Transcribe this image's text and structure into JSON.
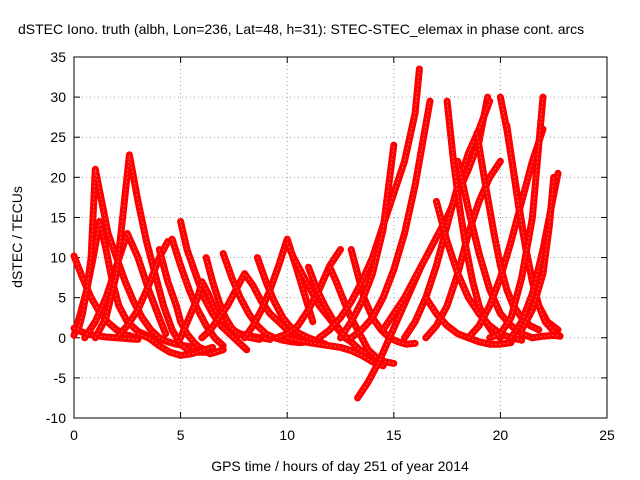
{
  "chart_data": {
    "type": "scatter",
    "title": "dSTEC Iono. truth (albh, Lon=236, Lat=48, h=31): STEC-STEC_elemax in phase cont. arcs",
    "xlabel": "GPS time / hours of day 251 of year 2014",
    "ylabel": "dSTEC  / TECUs",
    "xlim": [
      0,
      25
    ],
    "ylim": [
      -10,
      35
    ],
    "xticks": [
      "0",
      "5",
      "10",
      "15",
      "20",
      "25"
    ],
    "yticks": [
      "-10",
      "-5",
      "0",
      "5",
      "10",
      "15",
      "20",
      "25",
      "30",
      "35"
    ],
    "grid": true,
    "legend": "none",
    "color": "#ff0000",
    "series": [
      {
        "x": [
          0.0,
          0.4,
          0.8,
          1.2,
          1.6,
          2.0,
          2.4,
          2.7
        ],
        "y": [
          10.2,
          7.5,
          5.0,
          3.2,
          1.9,
          1.0,
          0.4,
          0.2
        ]
      },
      {
        "x": [
          0.0,
          0.3,
          0.6,
          0.9,
          1.2,
          1.5,
          1.8,
          2.1,
          2.5,
          3.0,
          3.5,
          4.2
        ],
        "y": [
          0.3,
          3.0,
          6.0,
          10.0,
          14.5,
          11.0,
          7.0,
          4.0,
          2.0,
          0.8,
          0.2,
          -0.3
        ]
      },
      {
        "x": [
          0.0,
          0.3,
          0.6,
          1.0,
          1.5,
          2.0,
          2.5,
          3.0
        ],
        "y": [
          1.2,
          0.8,
          0.5,
          0.3,
          0.1,
          0.0,
          -0.1,
          -0.2
        ]
      },
      {
        "x": [
          0.2,
          0.4,
          0.6,
          0.8,
          1.0,
          1.3,
          1.6,
          2.0,
          2.4,
          2.8,
          3.2,
          3.6,
          4.0,
          4.4,
          4.8,
          5.2,
          5.6,
          6.0
        ],
        "y": [
          1.0,
          3.0,
          6.0,
          10.0,
          21.0,
          17.0,
          13.0,
          10.0,
          7.0,
          4.5,
          2.5,
          1.0,
          0.0,
          -0.5,
          -0.8,
          -1.0,
          -1.2,
          -1.3
        ]
      },
      {
        "x": [
          0.5,
          1.0,
          1.5,
          2.0,
          2.5,
          3.0,
          3.5,
          4.0,
          4.3
        ],
        "y": [
          0.0,
          2.0,
          5.0,
          9.0,
          13.0,
          10.0,
          6.0,
          2.5,
          0.5
        ]
      },
      {
        "x": [
          1.0,
          1.5,
          2.0,
          2.6,
          3.0,
          3.4,
          3.8,
          4.2,
          4.6,
          5.0,
          5.4,
          5.8,
          6.2
        ],
        "y": [
          0.0,
          2.5,
          8.0,
          22.8,
          17.0,
          12.0,
          8.0,
          4.0,
          1.0,
          -0.8,
          -1.6,
          -1.8,
          -1.8
        ]
      },
      {
        "x": [
          2.0,
          2.5,
          3.0,
          3.5,
          4.0,
          4.4
        ],
        "y": [
          0.0,
          1.5,
          3.5,
          6.5,
          10.0,
          12.0
        ]
      },
      {
        "x": [
          4.0,
          4.4,
          4.8,
          5.0,
          5.3,
          5.6,
          6.0,
          6.4,
          7.0
        ],
        "y": [
          11.0,
          7.0,
          4.0,
          2.0,
          0.5,
          -0.5,
          -1.5,
          -2.0,
          -1.5
        ]
      },
      {
        "x": [
          3.0,
          3.5,
          4.0,
          4.5,
          5.0,
          5.5,
          6.0,
          6.5
        ],
        "y": [
          0.5,
          0.0,
          -1.0,
          -1.8,
          -2.2,
          -2.0,
          -1.6,
          -1.2
        ]
      },
      {
        "x": [
          4.6,
          5.0,
          5.4,
          5.8,
          6.2,
          6.6,
          7.0
        ],
        "y": [
          12.3,
          9.0,
          6.0,
          3.5,
          1.5,
          0.0,
          -1.0
        ]
      },
      {
        "x": [
          5.0,
          5.3,
          5.7,
          6.1,
          6.5,
          6.9,
          7.3,
          7.7,
          8.1
        ],
        "y": [
          14.5,
          11.0,
          8.0,
          5.0,
          3.0,
          1.5,
          0.5,
          -0.5,
          -1.5
        ]
      },
      {
        "x": [
          5.0,
          5.4,
          5.8,
          6.0,
          6.3,
          6.6,
          7.0,
          7.4,
          7.8,
          8.3,
          8.8,
          9.2
        ],
        "y": [
          0.0,
          2.5,
          5.0,
          7.0,
          5.5,
          3.5,
          2.0,
          1.0,
          0.5,
          0.2,
          0.0,
          -0.2
        ]
      },
      {
        "x": [
          6.2,
          6.5,
          6.8,
          7.1,
          7.4,
          7.7,
          8.0,
          8.3,
          8.7
        ],
        "y": [
          10.0,
          7.0,
          4.5,
          2.5,
          1.2,
          0.5,
          0.2,
          0.0,
          -0.2
        ]
      },
      {
        "x": [
          6.0,
          6.4,
          6.8,
          7.2,
          7.6,
          8.0,
          8.4,
          8.8,
          9.2,
          9.6,
          10.0,
          10.5,
          11.0
        ],
        "y": [
          0.0,
          1.0,
          2.5,
          4.0,
          6.0,
          8.0,
          6.5,
          4.5,
          3.0,
          2.0,
          1.0,
          0.2,
          -0.5
        ]
      },
      {
        "x": [
          7.0,
          7.4,
          7.8,
          8.2,
          8.6,
          9.0,
          9.4,
          9.8,
          10.2,
          10.6,
          11.0
        ],
        "y": [
          10.5,
          7.5,
          5.0,
          3.0,
          1.5,
          0.5,
          0.0,
          -0.3,
          -0.5,
          -0.6,
          -0.5
        ]
      },
      {
        "x": [
          8.0,
          8.4,
          8.8,
          9.2,
          9.6,
          10.0,
          10.4,
          10.8,
          11.2
        ],
        "y": [
          0.0,
          1.5,
          3.5,
          6.0,
          9.0,
          12.3,
          9.0,
          5.5,
          2.0
        ]
      },
      {
        "x": [
          8.6,
          9.0,
          9.4,
          9.8,
          10.2,
          10.6,
          11.0,
          11.4,
          11.8
        ],
        "y": [
          10.0,
          7.0,
          4.5,
          2.5,
          1.2,
          0.5,
          0.0,
          -0.4,
          -0.8
        ]
      },
      {
        "x": [
          10.0,
          10.3,
          10.6,
          10.9,
          11.2,
          11.5,
          11.8,
          12.1,
          12.4,
          12.7,
          13.0
        ],
        "y": [
          11.8,
          10.0,
          8.5,
          7.0,
          5.5,
          4.0,
          3.0,
          2.0,
          1.0,
          0.0,
          -0.5
        ]
      },
      {
        "x": [
          9.5,
          10.0,
          10.5,
          11.0,
          11.5,
          12.0,
          12.5
        ],
        "y": [
          0.0,
          0.5,
          1.5,
          3.5,
          6.0,
          9.0,
          11.0
        ]
      },
      {
        "x": [
          11.0,
          11.4,
          11.8,
          12.2,
          12.6,
          13.0,
          13.4,
          13.8,
          14.2
        ],
        "y": [
          8.8,
          6.0,
          3.8,
          2.0,
          0.5,
          -0.5,
          -1.5,
          -2.0,
          -2.5
        ]
      },
      {
        "x": [
          10.0,
          10.5,
          11.0,
          11.5,
          12.0,
          12.5,
          13.0,
          13.5,
          14.0,
          14.5
        ],
        "y": [
          0.0,
          -0.3,
          -0.6,
          -0.8,
          -1.0,
          -1.2,
          -1.6,
          -2.2,
          -3.0,
          -3.5
        ]
      },
      {
        "x": [
          12.0,
          12.3,
          12.6,
          12.9,
          13.2,
          13.5,
          13.8,
          14.2,
          14.6,
          15.0
        ],
        "y": [
          8.8,
          7.0,
          5.0,
          3.0,
          1.5,
          0.0,
          -1.5,
          -2.5,
          -3.0,
          -3.2
        ]
      },
      {
        "x": [
          13.0,
          13.3,
          13.6,
          14.0,
          14.4,
          14.8,
          15.2,
          15.6,
          16.0
        ],
        "y": [
          11.0,
          8.0,
          5.0,
          2.5,
          1.0,
          0.0,
          -0.5,
          -0.8,
          -0.7
        ]
      },
      {
        "x": [
          11.5,
          12.0,
          12.5,
          13.0,
          13.5,
          14.0,
          14.5,
          15.0,
          15.5,
          16.0,
          16.2
        ],
        "y": [
          0.0,
          1.0,
          2.5,
          4.5,
          7.0,
          10.0,
          14.0,
          18.0,
          22.0,
          28.0,
          33.5
        ]
      },
      {
        "x": [
          13.3,
          13.8,
          14.3,
          14.8,
          15.3,
          15.8,
          16.3
        ],
        "y": [
          -7.5,
          -5.5,
          -3.0,
          0.0,
          3.0,
          6.0,
          9.0
        ]
      },
      {
        "x": [
          12.5,
          13.0,
          13.5,
          14.0,
          14.5,
          15.0
        ],
        "y": [
          0.0,
          2.0,
          4.5,
          8.0,
          13.5,
          24.0
        ]
      },
      {
        "x": [
          13.0,
          13.5,
          14.0,
          14.5,
          15.0,
          15.5,
          16.0,
          16.4,
          16.7
        ],
        "y": [
          0.0,
          1.0,
          2.5,
          5.0,
          8.5,
          13.0,
          19.0,
          25.0,
          29.5
        ]
      },
      {
        "x": [
          14.5,
          15.0,
          15.5,
          16.0,
          16.5,
          17.0,
          17.5,
          18.0,
          18.5,
          19.0,
          19.4
        ],
        "y": [
          1.0,
          3.0,
          5.0,
          7.5,
          10.0,
          12.5,
          15.0,
          18.0,
          21.0,
          24.5,
          30.0
        ]
      },
      {
        "x": [
          15.5,
          16.0,
          16.5,
          17.0,
          17.5,
          18.0,
          18.5,
          19.0,
          19.5
        ],
        "y": [
          0.0,
          2.0,
          5.0,
          9.0,
          14.0,
          19.0,
          23.0,
          26.0,
          29.5
        ]
      },
      {
        "x": [
          16.5,
          17.0,
          17.5,
          18.0,
          18.5,
          19.0,
          19.5,
          20.0
        ],
        "y": [
          0.0,
          1.5,
          4.0,
          8.0,
          13.0,
          17.0,
          20.0,
          22.0
        ]
      },
      {
        "x": [
          17.5,
          17.8,
          18.1,
          18.4,
          18.7,
          19.0,
          19.3,
          19.6,
          20.0
        ],
        "y": [
          29.5,
          22.0,
          16.0,
          11.0,
          7.0,
          4.0,
          2.0,
          0.8,
          0.0
        ]
      },
      {
        "x": [
          16.5,
          17.0,
          17.5,
          18.0,
          18.5,
          19.0,
          19.5,
          20.0,
          20.5
        ],
        "y": [
          5.0,
          3.0,
          1.5,
          0.5,
          0.0,
          -0.5,
          -0.8,
          -0.8,
          -0.6
        ]
      },
      {
        "x": [
          17.0,
          17.5,
          18.0,
          18.5,
          19.0,
          19.5,
          20.0,
          20.5,
          21.0
        ],
        "y": [
          17.0,
          12.0,
          8.0,
          5.0,
          3.0,
          1.5,
          0.5,
          0.0,
          -0.3
        ]
      },
      {
        "x": [
          18.0,
          18.5,
          19.0,
          19.5,
          20.0,
          20.5,
          21.0,
          21.5
        ],
        "y": [
          22.0,
          16.0,
          10.5,
          6.0,
          3.0,
          1.5,
          0.5,
          0.0
        ]
      },
      {
        "x": [
          18.5,
          19.0,
          19.5,
          20.0,
          20.5,
          21.0,
          21.5,
          22.0
        ],
        "y": [
          0.0,
          1.5,
          4.0,
          7.5,
          12.0,
          17.0,
          22.0,
          26.0
        ]
      },
      {
        "x": [
          18.9,
          19.3,
          19.7,
          20.0,
          20.3,
          20.6,
          21.0,
          21.4,
          21.8
        ],
        "y": [
          25.5,
          19.0,
          13.0,
          9.0,
          6.0,
          4.0,
          2.5,
          1.5,
          1.0
        ]
      },
      {
        "x": [
          20.0,
          20.3,
          20.6,
          20.9,
          21.2,
          21.5,
          21.8,
          22.2,
          22.7
        ],
        "y": [
          30.0,
          26.0,
          21.0,
          16.0,
          11.0,
          7.0,
          4.0,
          2.0,
          1.0
        ]
      },
      {
        "x": [
          20.3,
          20.6,
          20.9,
          21.2,
          21.5,
          21.8,
          22.1,
          22.5,
          22.8
        ],
        "y": [
          26.5,
          21.0,
          15.5,
          11.0,
          7.0,
          4.0,
          2.0,
          0.8,
          0.2
        ]
      },
      {
        "x": [
          19.5,
          20.0,
          20.5,
          21.0,
          21.5,
          22.0
        ],
        "y": [
          0.0,
          0.5,
          2.5,
          7.5,
          15.0,
          30.0
        ]
      },
      {
        "x": [
          20.5,
          21.0,
          21.5,
          22.0,
          22.4,
          22.7
        ],
        "y": [
          0.0,
          2.0,
          5.5,
          11.0,
          16.5,
          20.5
        ]
      },
      {
        "x": [
          21.0,
          21.5,
          22.0,
          22.3,
          22.5
        ],
        "y": [
          1.0,
          3.5,
          8.0,
          14.0,
          20.0
        ]
      },
      {
        "x": [
          21.5,
          22.0,
          22.5,
          22.8
        ],
        "y": [
          0.0,
          0.2,
          0.3,
          0.2
        ]
      }
    ]
  }
}
